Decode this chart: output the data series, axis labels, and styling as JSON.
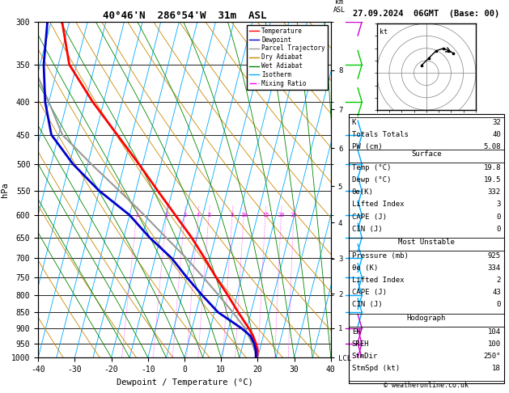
{
  "title": "40°46'N  286°54'W  31m  ASL",
  "date_str": "27.09.2024  06GMT  (Base: 00)",
  "xlabel": "Dewpoint / Temperature (°C)",
  "ylabel_left": "hPa",
  "pressure_ticks": [
    300,
    350,
    400,
    450,
    500,
    550,
    600,
    650,
    700,
    750,
    800,
    850,
    900,
    950,
    1000
  ],
  "km_labels": [
    {
      "label": "8",
      "pressure": 357
    },
    {
      "label": "7",
      "pressure": 411
    },
    {
      "label": "6",
      "pressure": 472
    },
    {
      "label": "5",
      "pressure": 541
    },
    {
      "label": "4",
      "pressure": 616
    },
    {
      "label": "3",
      "pressure": 701
    },
    {
      "label": "2",
      "pressure": 795
    },
    {
      "label": "1",
      "pressure": 899
    },
    {
      "label": "LCL",
      "pressure": 1000
    }
  ],
  "mixing_ratio_values": [
    1,
    2,
    3,
    4,
    5,
    8,
    10,
    15,
    20,
    25
  ],
  "mixing_ratio_label_pressure": 600,
  "temp_profile": {
    "pressure": [
      1000,
      975,
      950,
      925,
      900,
      850,
      800,
      750,
      700,
      650,
      600,
      550,
      500,
      450,
      400,
      350,
      300
    ],
    "temp": [
      19.8,
      19.5,
      18.5,
      17.2,
      15.5,
      11.5,
      7.5,
      3.0,
      -1.5,
      -6.5,
      -12.5,
      -19.0,
      -26.0,
      -34.0,
      -43.0,
      -52.0,
      -57.0
    ]
  },
  "dewp_profile": {
    "pressure": [
      1000,
      975,
      950,
      925,
      900,
      850,
      800,
      750,
      700,
      650,
      600,
      550,
      500,
      450,
      400,
      350,
      300
    ],
    "temp": [
      19.5,
      19.0,
      18.0,
      16.5,
      13.5,
      6.0,
      0.5,
      -5.0,
      -10.5,
      -18.0,
      -25.0,
      -35.0,
      -44.0,
      -52.0,
      -56.0,
      -59.0,
      -61.0
    ]
  },
  "parcel_profile": {
    "pressure": [
      1000,
      950,
      900,
      850,
      800,
      750,
      700,
      650,
      600,
      550,
      500,
      450,
      400,
      350,
      300
    ],
    "temp": [
      19.8,
      17.5,
      14.5,
      10.0,
      5.0,
      -0.5,
      -6.5,
      -13.5,
      -21.0,
      -29.5,
      -39.0,
      -49.0,
      -55.0,
      -62.0,
      -68.0
    ]
  },
  "colors": {
    "temperature": "#ff0000",
    "dewpoint": "#0000cc",
    "parcel": "#999999",
    "dry_adiabat": "#cc8800",
    "wet_adiabat": "#008800",
    "isotherm": "#00aaff",
    "mixing_ratio": "#ff00ff",
    "background": "#ffffff"
  },
  "skewt_params": {
    "pmin": 300,
    "pmax": 1000,
    "tmin": -40,
    "tmax": 40,
    "skew_factor": 45
  },
  "legend_entries": [
    {
      "label": "Temperature",
      "color": "#ff0000",
      "linestyle": "-"
    },
    {
      "label": "Dewpoint",
      "color": "#0000cc",
      "linestyle": "-"
    },
    {
      "label": "Parcel Trajectory",
      "color": "#999999",
      "linestyle": "-"
    },
    {
      "label": "Dry Adiabat",
      "color": "#cc8800",
      "linestyle": "-"
    },
    {
      "label": "Wet Adiabat",
      "color": "#008800",
      "linestyle": "-"
    },
    {
      "label": "Isotherm",
      "color": "#00aaff",
      "linestyle": "-"
    },
    {
      "label": "Mixing Ratio",
      "color": "#ff00ff",
      "linestyle": "-."
    }
  ],
  "stats": {
    "K": "32",
    "Totals Totals": "40",
    "PW (cm)": "5.08",
    "surface_title": "Surface",
    "surface": [
      [
        "Temp (°C)",
        "19.8"
      ],
      [
        "Dewp (°C)",
        "19.5"
      ],
      [
        "θe(K)",
        "332"
      ],
      [
        "Lifted Index",
        "3"
      ],
      [
        "CAPE (J)",
        "0"
      ],
      [
        "CIN (J)",
        "0"
      ]
    ],
    "mu_title": "Most Unstable",
    "most_unstable": [
      [
        "Pressure (mb)",
        "925"
      ],
      [
        "θe (K)",
        "334"
      ],
      [
        "Lifted Index",
        "2"
      ],
      [
        "CAPE (J)",
        "43"
      ],
      [
        "CIN (J)",
        "0"
      ]
    ],
    "hodo_title": "Hodograph",
    "hodograph": [
      [
        "EH",
        "104"
      ],
      [
        "SREH",
        "100"
      ],
      [
        "StmDir",
        "250°"
      ],
      [
        "StmSpd (kt)",
        "18"
      ]
    ]
  },
  "wind_barb_colors": [
    "#cc00cc",
    "#cc00cc",
    "#cc00cc",
    "#cc00cc",
    "#cc00cc",
    "#00aaff",
    "#00aaff",
    "#00aaff",
    "#00aaff",
    "#00aaff",
    "#00aaff",
    "#00aaff",
    "#00aaff",
    "#00aaff",
    "#00cc00",
    "#00cc00",
    "#cc00cc"
  ],
  "hodograph_u": [
    -2,
    1,
    4,
    7,
    9,
    11
  ],
  "hodograph_v": [
    3,
    6,
    9,
    10,
    9,
    8
  ]
}
